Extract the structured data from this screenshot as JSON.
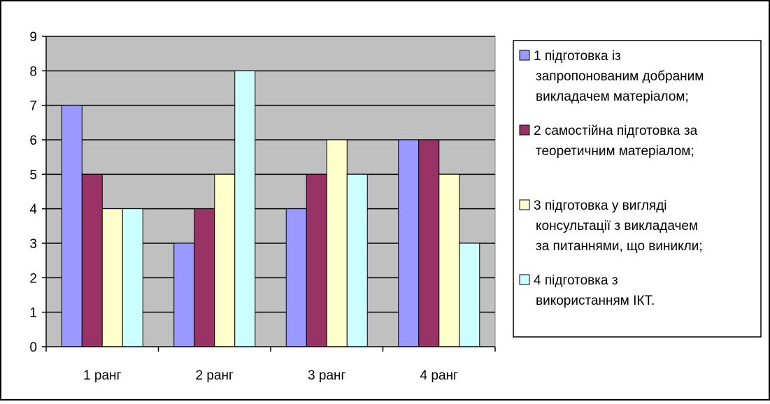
{
  "colors": {
    "plot_background": "#c0c0c0",
    "series": [
      "#9999ff",
      "#993366",
      "#ffffcc",
      "#ccffff"
    ]
  },
  "chart_data": {
    "type": "bar",
    "title": "",
    "xlabel": "",
    "ylabel": "",
    "categories": [
      "1 ранг",
      "2 ранг",
      "3 ранг",
      "4 ранг"
    ],
    "ylim": [
      0,
      9
    ],
    "yticks": [
      "0",
      "1",
      "2",
      "3",
      "4",
      "5",
      "6",
      "7",
      "8",
      "9"
    ],
    "grid": true,
    "legend_position": "right",
    "series": [
      {
        "name": "1 підготовка із запропонованим добраним викладачем матеріалом;",
        "legend_lines": [
          "1 підготовка із",
          "запропонованим добраним",
          "викладачем матеріалом;"
        ],
        "values": [
          7,
          3,
          4,
          6
        ]
      },
      {
        "name": "2 самостійна підготовка за теоретичним матеріалом;",
        "legend_lines": [
          "2 самостійна підготовка за",
          "теоретичним матеріалом;"
        ],
        "values": [
          5,
          4,
          5,
          6
        ]
      },
      {
        "name": "3 підготовка у вигляді консультації з викладачем за питаннями, що виникли;",
        "legend_lines": [
          "3 підготовка у вигляді",
          "консультації з викладачем",
          "за питаннями, що виникли;"
        ],
        "values": [
          4,
          5,
          6,
          5
        ]
      },
      {
        "name": "4 підготовка з використанням ІКТ.",
        "legend_lines": [
          "4 підготовка з",
          "використанням ІКТ."
        ],
        "values": [
          4,
          8,
          5,
          3
        ]
      }
    ]
  }
}
